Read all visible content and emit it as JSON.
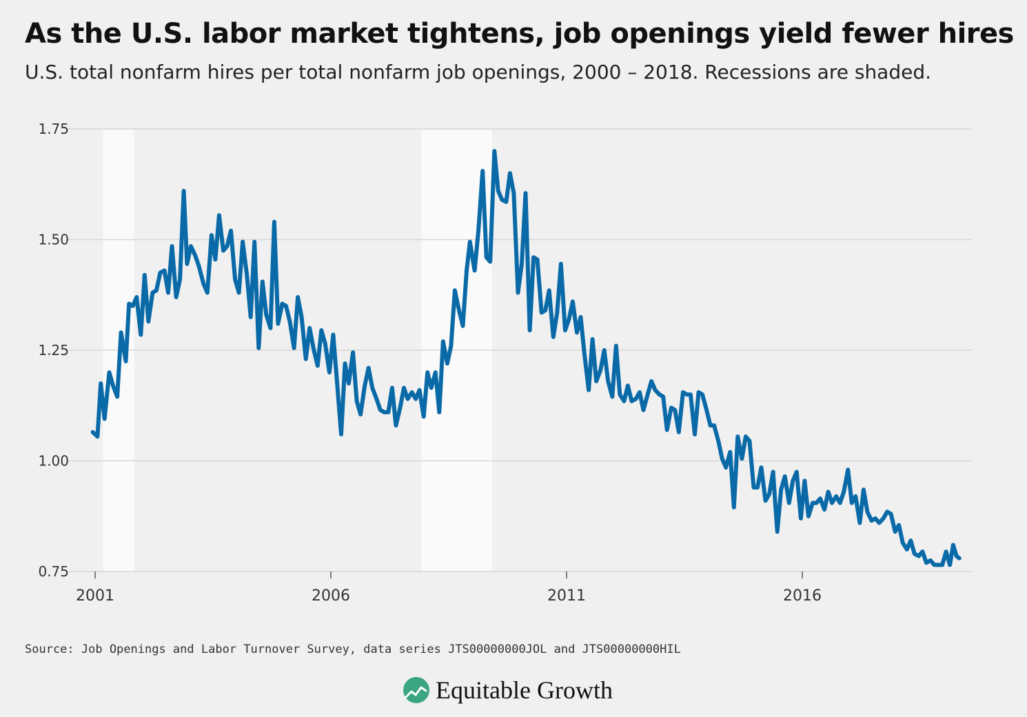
{
  "title": "As the U.S. labor market tightens, job openings yield fewer hires",
  "subtitle": "U.S. total nonfarm hires per total nonfarm job openings, 2000 – 2018. Recessions are shaded.",
  "source": "Source: Job Openings and Labor Turnover Survey, data series JTS00000000JOL and JTS00000000HIL",
  "brand": "Equitable Growth",
  "colors": {
    "line": "#0a6aa8",
    "recession": "#fafafa",
    "grid": "#d6d6d6",
    "background": "#f0f0f0",
    "logo": "#3aa57e"
  },
  "chart_data": {
    "type": "line",
    "title": "",
    "xlabel": "",
    "ylabel": "",
    "ylim": [
      0.75,
      1.75
    ],
    "yticks": [
      0.75,
      1.0,
      1.25,
      1.5,
      1.75
    ],
    "ytick_labels": [
      "0.75",
      "1.00",
      "1.25",
      "1.50",
      "1.75"
    ],
    "xticks": [
      2001,
      2006,
      2011,
      2016
    ],
    "xtick_labels": [
      "2001",
      "2006",
      "2011",
      "2016"
    ],
    "xlim": [
      2000.95,
      2019.5
    ],
    "grid": true,
    "recessions": [
      [
        2001.17,
        2001.83
      ],
      [
        2007.92,
        2009.42
      ]
    ],
    "series": [
      {
        "points": [
          [
            2000.95,
            1.065
          ],
          [
            2001.05,
            1.055
          ],
          [
            2001.12,
            1.175
          ],
          [
            2001.2,
            1.095
          ],
          [
            2001.3,
            1.2
          ],
          [
            2001.38,
            1.17
          ],
          [
            2001.47,
            1.145
          ],
          [
            2001.55,
            1.29
          ],
          [
            2001.65,
            1.225
          ],
          [
            2001.72,
            1.355
          ],
          [
            2001.8,
            1.35
          ],
          [
            2001.88,
            1.37
          ],
          [
            2001.97,
            1.285
          ],
          [
            2002.05,
            1.42
          ],
          [
            2002.13,
            1.315
          ],
          [
            2002.22,
            1.38
          ],
          [
            2002.3,
            1.385
          ],
          [
            2002.38,
            1.425
          ],
          [
            2002.47,
            1.43
          ],
          [
            2002.55,
            1.38
          ],
          [
            2002.63,
            1.485
          ],
          [
            2002.72,
            1.37
          ],
          [
            2002.8,
            1.41
          ],
          [
            2002.88,
            1.61
          ],
          [
            2002.95,
            1.445
          ],
          [
            2003.03,
            1.485
          ],
          [
            2003.12,
            1.465
          ],
          [
            2003.2,
            1.44
          ],
          [
            2003.3,
            1.4
          ],
          [
            2003.38,
            1.38
          ],
          [
            2003.47,
            1.51
          ],
          [
            2003.55,
            1.455
          ],
          [
            2003.63,
            1.555
          ],
          [
            2003.72,
            1.475
          ],
          [
            2003.8,
            1.485
          ],
          [
            2003.88,
            1.52
          ],
          [
            2003.97,
            1.41
          ],
          [
            2004.05,
            1.38
          ],
          [
            2004.13,
            1.495
          ],
          [
            2004.22,
            1.42
          ],
          [
            2004.3,
            1.325
          ],
          [
            2004.38,
            1.495
          ],
          [
            2004.47,
            1.255
          ],
          [
            2004.55,
            1.405
          ],
          [
            2004.63,
            1.33
          ],
          [
            2004.72,
            1.3
          ],
          [
            2004.8,
            1.54
          ],
          [
            2004.88,
            1.31
          ],
          [
            2004.97,
            1.355
          ],
          [
            2005.05,
            1.35
          ],
          [
            2005.13,
            1.315
          ],
          [
            2005.22,
            1.255
          ],
          [
            2005.3,
            1.37
          ],
          [
            2005.38,
            1.325
          ],
          [
            2005.47,
            1.23
          ],
          [
            2005.55,
            1.3
          ],
          [
            2005.63,
            1.255
          ],
          [
            2005.72,
            1.215
          ],
          [
            2005.8,
            1.295
          ],
          [
            2005.88,
            1.265
          ],
          [
            2005.97,
            1.2
          ],
          [
            2006.05,
            1.285
          ],
          [
            2006.13,
            1.18
          ],
          [
            2006.22,
            1.06
          ],
          [
            2006.3,
            1.22
          ],
          [
            2006.38,
            1.175
          ],
          [
            2006.47,
            1.245
          ],
          [
            2006.55,
            1.135
          ],
          [
            2006.63,
            1.105
          ],
          [
            2006.72,
            1.17
          ],
          [
            2006.8,
            1.21
          ],
          [
            2006.88,
            1.165
          ],
          [
            2006.97,
            1.14
          ],
          [
            2007.05,
            1.115
          ],
          [
            2007.13,
            1.11
          ],
          [
            2007.22,
            1.11
          ],
          [
            2007.3,
            1.165
          ],
          [
            2007.38,
            1.08
          ],
          [
            2007.47,
            1.12
          ],
          [
            2007.55,
            1.165
          ],
          [
            2007.63,
            1.14
          ],
          [
            2007.72,
            1.155
          ],
          [
            2007.8,
            1.14
          ],
          [
            2007.88,
            1.16
          ],
          [
            2007.97,
            1.1
          ],
          [
            2008.05,
            1.2
          ],
          [
            2008.13,
            1.165
          ],
          [
            2008.22,
            1.2
          ],
          [
            2008.3,
            1.11
          ],
          [
            2008.38,
            1.27
          ],
          [
            2008.47,
            1.22
          ],
          [
            2008.55,
            1.26
          ],
          [
            2008.63,
            1.385
          ],
          [
            2008.72,
            1.34
          ],
          [
            2008.8,
            1.305
          ],
          [
            2008.88,
            1.43
          ],
          [
            2008.95,
            1.495
          ],
          [
            2009.05,
            1.43
          ],
          [
            2009.13,
            1.52
          ],
          [
            2009.22,
            1.655
          ],
          [
            2009.3,
            1.46
          ],
          [
            2009.38,
            1.45
          ],
          [
            2009.47,
            1.7
          ],
          [
            2009.55,
            1.61
          ],
          [
            2009.63,
            1.59
          ],
          [
            2009.72,
            1.585
          ],
          [
            2009.8,
            1.65
          ],
          [
            2009.88,
            1.605
          ],
          [
            2009.97,
            1.38
          ],
          [
            2010.05,
            1.445
          ],
          [
            2010.13,
            1.605
          ],
          [
            2010.22,
            1.295
          ],
          [
            2010.3,
            1.46
          ],
          [
            2010.38,
            1.455
          ],
          [
            2010.47,
            1.335
          ],
          [
            2010.55,
            1.34
          ],
          [
            2010.63,
            1.385
          ],
          [
            2010.72,
            1.28
          ],
          [
            2010.8,
            1.335
          ],
          [
            2010.88,
            1.445
          ],
          [
            2010.97,
            1.295
          ],
          [
            2011.05,
            1.32
          ],
          [
            2011.13,
            1.36
          ],
          [
            2011.22,
            1.29
          ],
          [
            2011.3,
            1.325
          ],
          [
            2011.38,
            1.24
          ],
          [
            2011.47,
            1.16
          ],
          [
            2011.55,
            1.275
          ],
          [
            2011.63,
            1.18
          ],
          [
            2011.72,
            1.205
          ],
          [
            2011.8,
            1.25
          ],
          [
            2011.88,
            1.18
          ],
          [
            2011.97,
            1.145
          ],
          [
            2012.05,
            1.26
          ],
          [
            2012.13,
            1.15
          ],
          [
            2012.22,
            1.135
          ],
          [
            2012.3,
            1.17
          ],
          [
            2012.38,
            1.135
          ],
          [
            2012.47,
            1.14
          ],
          [
            2012.55,
            1.155
          ],
          [
            2012.63,
            1.115
          ],
          [
            2012.72,
            1.15
          ],
          [
            2012.8,
            1.18
          ],
          [
            2012.88,
            1.16
          ],
          [
            2012.97,
            1.15
          ],
          [
            2013.05,
            1.145
          ],
          [
            2013.13,
            1.07
          ],
          [
            2013.22,
            1.12
          ],
          [
            2013.3,
            1.115
          ],
          [
            2013.38,
            1.065
          ],
          [
            2013.47,
            1.155
          ],
          [
            2013.55,
            1.15
          ],
          [
            2013.63,
            1.15
          ],
          [
            2013.72,
            1.06
          ],
          [
            2013.8,
            1.155
          ],
          [
            2013.88,
            1.15
          ],
          [
            2013.97,
            1.115
          ],
          [
            2014.05,
            1.08
          ],
          [
            2014.13,
            1.08
          ],
          [
            2014.22,
            1.045
          ],
          [
            2014.3,
            1.005
          ],
          [
            2014.38,
            0.985
          ],
          [
            2014.47,
            1.02
          ],
          [
            2014.55,
            0.895
          ],
          [
            2014.63,
            1.055
          ],
          [
            2014.72,
            1.005
          ],
          [
            2014.8,
            1.055
          ],
          [
            2014.88,
            1.045
          ],
          [
            2014.97,
            0.94
          ],
          [
            2015.05,
            0.94
          ],
          [
            2015.13,
            0.985
          ],
          [
            2015.22,
            0.91
          ],
          [
            2015.3,
            0.925
          ],
          [
            2015.38,
            0.975
          ],
          [
            2015.47,
            0.84
          ],
          [
            2015.55,
            0.935
          ],
          [
            2015.63,
            0.965
          ],
          [
            2015.72,
            0.905
          ],
          [
            2015.8,
            0.955
          ],
          [
            2015.88,
            0.975
          ],
          [
            2015.97,
            0.87
          ],
          [
            2016.05,
            0.955
          ],
          [
            2016.13,
            0.875
          ],
          [
            2016.22,
            0.905
          ],
          [
            2016.3,
            0.905
          ],
          [
            2016.38,
            0.915
          ],
          [
            2016.47,
            0.89
          ],
          [
            2016.55,
            0.93
          ],
          [
            2016.63,
            0.905
          ],
          [
            2016.72,
            0.92
          ],
          [
            2016.8,
            0.905
          ],
          [
            2016.88,
            0.93
          ],
          [
            2016.97,
            0.98
          ],
          [
            2017.05,
            0.905
          ],
          [
            2017.13,
            0.92
          ],
          [
            2017.22,
            0.86
          ],
          [
            2017.3,
            0.935
          ],
          [
            2017.38,
            0.885
          ],
          [
            2017.47,
            0.865
          ],
          [
            2017.55,
            0.87
          ],
          [
            2017.63,
            0.86
          ],
          [
            2017.72,
            0.87
          ],
          [
            2017.8,
            0.885
          ],
          [
            2017.88,
            0.88
          ],
          [
            2017.97,
            0.84
          ],
          [
            2018.05,
            0.855
          ],
          [
            2018.13,
            0.815
          ],
          [
            2018.22,
            0.8
          ],
          [
            2018.3,
            0.82
          ],
          [
            2018.38,
            0.79
          ],
          [
            2018.47,
            0.785
          ],
          [
            2018.55,
            0.795
          ],
          [
            2018.63,
            0.77
          ],
          [
            2018.72,
            0.775
          ],
          [
            2018.8,
            0.765
          ],
          [
            2018.88,
            0.765
          ],
          [
            2018.97,
            0.765
          ],
          [
            2019.05,
            0.795
          ],
          [
            2019.13,
            0.765
          ],
          [
            2019.2,
            0.81
          ],
          [
            2019.27,
            0.785
          ],
          [
            2019.33,
            0.78
          ]
        ]
      }
    ]
  }
}
